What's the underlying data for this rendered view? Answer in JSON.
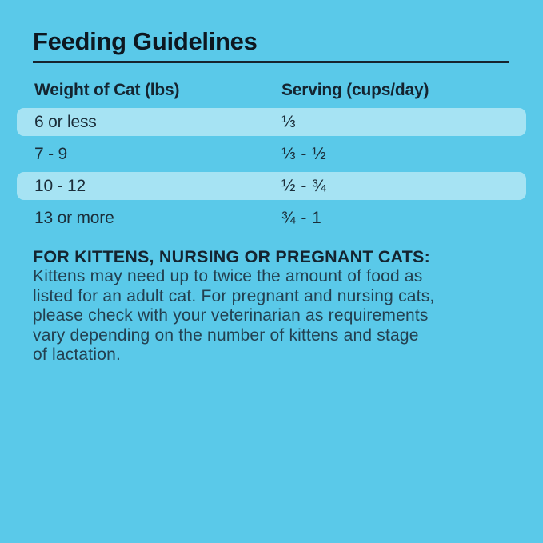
{
  "page": {
    "title": "Feeding Guidelines"
  },
  "colors": {
    "background": "#5AC9E9",
    "row_stripe": "#A6E3F3",
    "title_text": "#0D1720",
    "rule": "#16242E",
    "header_text": "#142430",
    "row_text": "#1B2D39",
    "note_body_text": "#234050"
  },
  "table": {
    "headers": {
      "weight": "Weight of Cat (lbs)",
      "serving": "Serving (cups/day)"
    },
    "rows": [
      {
        "weight": "6 or less",
        "serving": "⅓",
        "striped": true
      },
      {
        "weight": "7 - 9",
        "serving": "⅓ - ½",
        "striped": false
      },
      {
        "weight": "10 - 12",
        "serving": "½ - ¾",
        "striped": true
      },
      {
        "weight": "13 or more",
        "serving": "¾ - 1",
        "striped": false
      }
    ]
  },
  "note": {
    "heading": "FOR KITTENS, NURSING OR PREGNANT CATS:",
    "body": "Kittens may need up to twice the amount of food as\nlisted for an adult cat. For pregnant and nursing cats,\nplease check with your veterinarian as requirements\nvary depending on the number of kittens and stage\nof lactation."
  }
}
